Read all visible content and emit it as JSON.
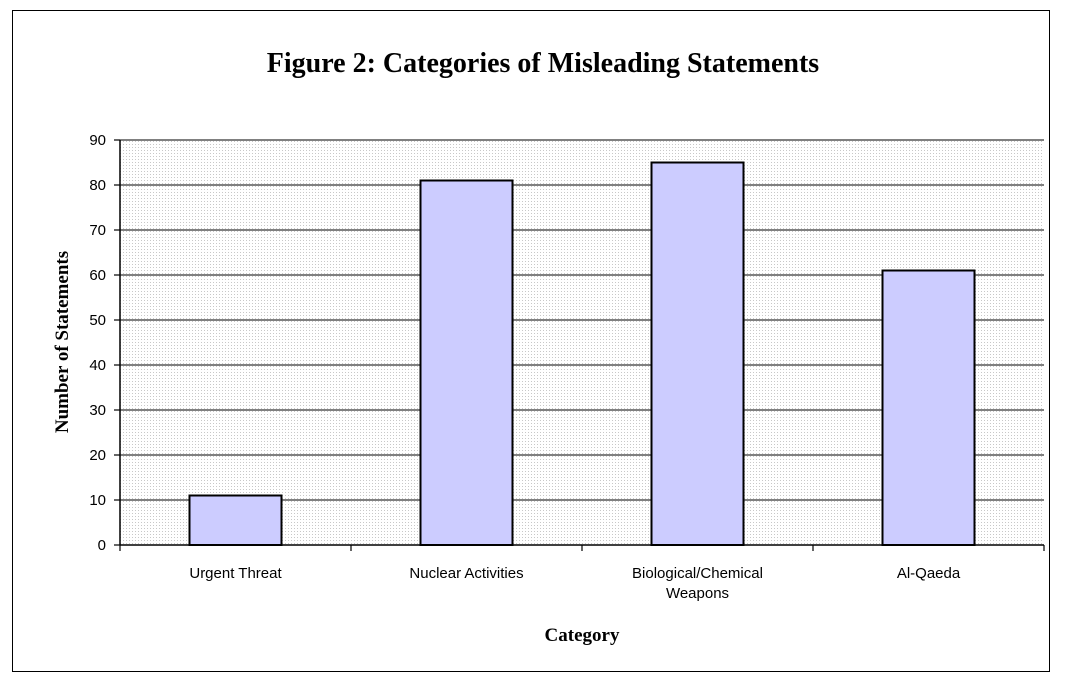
{
  "chart_data": {
    "type": "bar",
    "title": "Figure 2:  Categories of Misleading Statements",
    "xlabel": "Category",
    "ylabel": "Number of Statements",
    "categories": [
      [
        "Urgent Threat"
      ],
      [
        "Nuclear Activities"
      ],
      [
        "Biological/Chemical",
        "Weapons"
      ],
      [
        "Al-Qaeda"
      ]
    ],
    "values": [
      11,
      81,
      85,
      61
    ],
    "ylim": [
      0,
      90
    ],
    "yticks": [
      0,
      10,
      20,
      30,
      40,
      50,
      60,
      70,
      80,
      90
    ],
    "grid": true,
    "legend": "none",
    "colors": {
      "bar_fill": "#ccccff",
      "bar_stroke": "#000000",
      "grid": "#000000",
      "plot_background": "#ffffff"
    }
  }
}
